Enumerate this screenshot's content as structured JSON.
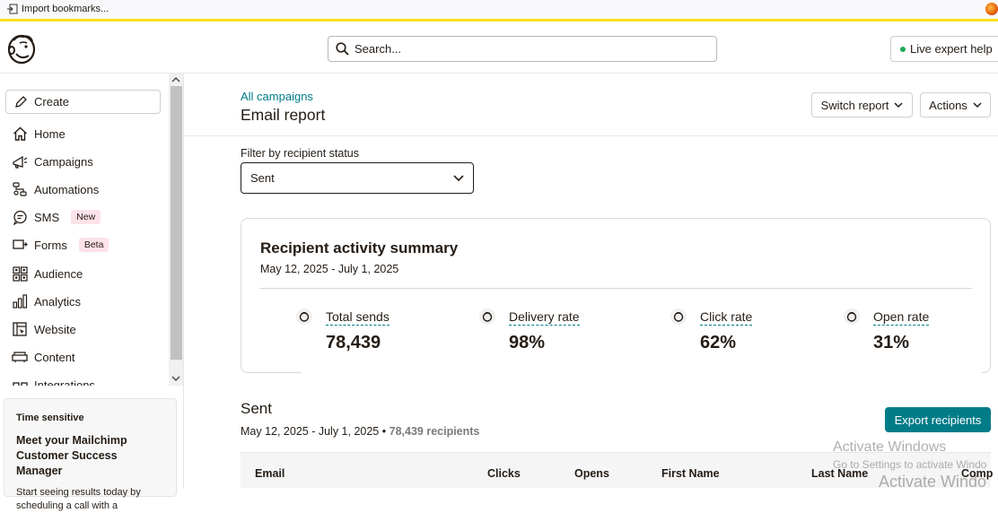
{
  "bookmarks_bar": {
    "import_label": "Import bookmarks..."
  },
  "header": {
    "search_placeholder": "Search...",
    "live_help_label": "Live expert help"
  },
  "sidebar": {
    "create_label": "Create",
    "items": [
      {
        "label": "Home",
        "icon": "home-icon"
      },
      {
        "label": "Campaigns",
        "icon": "megaphone-icon"
      },
      {
        "label": "Automations",
        "icon": "automations-icon"
      },
      {
        "label": "SMS",
        "icon": "sms-icon",
        "badge": "New"
      },
      {
        "label": "Forms",
        "icon": "forms-icon",
        "badge": "Beta"
      },
      {
        "label": "Audience",
        "icon": "audience-icon"
      },
      {
        "label": "Analytics",
        "icon": "bar-chart-icon"
      },
      {
        "label": "Website",
        "icon": "website-icon"
      },
      {
        "label": "Content",
        "icon": "content-icon"
      },
      {
        "label": "Integrations",
        "icon": "integrations-icon"
      }
    ],
    "promo": {
      "tag": "Time sensitive",
      "title": "Meet your Mailchimp Customer Success Manager",
      "body": "Start seeing results today by scheduling a call with a"
    }
  },
  "page": {
    "breadcrumb": "All campaigns",
    "title": "Email report",
    "switch_report_label": "Switch report",
    "actions_label": "Actions"
  },
  "filter": {
    "label": "Filter by recipient status",
    "selected": "Sent"
  },
  "summary": {
    "title": "Recipient activity summary",
    "date_range": "May 12, 2025 - July 1, 2025",
    "stats": [
      {
        "label": "Total sends",
        "value": "78,439"
      },
      {
        "label": "Delivery rate",
        "value": "98%"
      },
      {
        "label": "Click rate",
        "value": "62%"
      },
      {
        "label": "Open rate",
        "value": "31%"
      }
    ]
  },
  "sent": {
    "title": "Sent",
    "date_range": "May 12, 2025 - July 1, 2025",
    "separator": "•",
    "recipients": "78,439 recipients",
    "export_label": "Export recipients",
    "columns": [
      "Email",
      "Clicks",
      "Opens",
      "First Name",
      "Last Name",
      "Comp"
    ]
  },
  "watermark": {
    "line1": "Activate Windows",
    "line2": "Go to Settings to activate Windo",
    "line3": "Activate Windo"
  },
  "colors": {
    "accent": "#007c89",
    "brand_yellow": "#ffe01b",
    "live_dot": "#1ea65a"
  }
}
